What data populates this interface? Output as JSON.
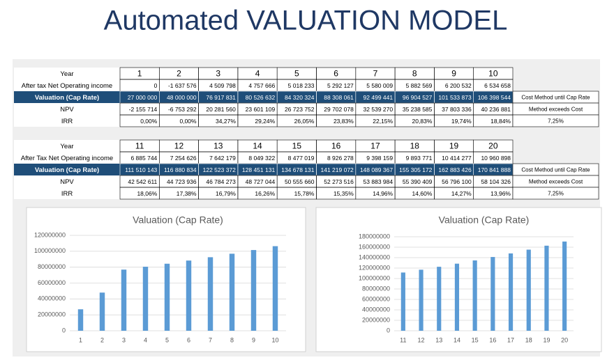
{
  "title": "Automated VALUATION MODEL",
  "tables": [
    {
      "rows": [
        {
          "label": "Year",
          "cells": [
            "1",
            "2",
            "3",
            "4",
            "5",
            "6",
            "7",
            "8",
            "9",
            "10"
          ]
        },
        {
          "label": "After tax Net Operating income",
          "cells": [
            "0",
            "-1 637 576",
            "4 509 798",
            "4 757 666",
            "5 018 233",
            "5 292 127",
            "5 580 009",
            "5 882 569",
            "6 200 532",
            "6 534 658"
          ]
        },
        {
          "label": "Valuation (Cap Rate)",
          "cells": [
            "27 000 000",
            "48 000 000",
            "76 917 831",
            "80 526 632",
            "84 320 324",
            "88 308 061",
            "92 499 441",
            "96 904 527",
            "101 533 873",
            "106 398 544"
          ],
          "note": "Cost Method until Cap Rate"
        },
        {
          "label": "NPV",
          "cells": [
            "-2 155 714",
            "-6 753 292",
            "20 281 560",
            "23 601 109",
            "26 723 752",
            "29 702 078",
            "32 539 270",
            "35 238 585",
            "37 803 336",
            "40 236 881"
          ],
          "note": "Method exceeds Cost"
        },
        {
          "label": "IRR",
          "cells": [
            "0,00%",
            "0,00%",
            "34,27%",
            "29,24%",
            "26,05%",
            "23,83%",
            "22,15%",
            "20,83%",
            "19,74%",
            "18,84%"
          ],
          "note": "7,25%"
        }
      ]
    },
    {
      "rows": [
        {
          "label": "Year",
          "cells": [
            "11",
            "12",
            "13",
            "14",
            "15",
            "16",
            "17",
            "18",
            "19",
            "20"
          ]
        },
        {
          "label": "After Tax Net Operating income",
          "cells": [
            "6 885 744",
            "7 254 626",
            "7 642 179",
            "8 049 322",
            "8 477 019",
            "8 926 278",
            "9 398 159",
            "9 893 771",
            "10 414 277",
            "10 960 898"
          ]
        },
        {
          "label": "Valuation (Cap Rate)",
          "cells": [
            "111 510 143",
            "116 880 834",
            "122 523 372",
            "128 451 131",
            "134 678 131",
            "141 219 072",
            "148 089 367",
            "155 305 172",
            "162 883 426",
            "170 841 888"
          ],
          "note": "Cost Method until Cap Rate"
        },
        {
          "label": "NPV",
          "cells": [
            "42 542 611",
            "44 723 936",
            "46 784 273",
            "48 727 044",
            "50 555 660",
            "52 273 516",
            "53 883 984",
            "55 390 409",
            "56 796 100",
            "58 104 326"
          ],
          "note": "Method exceeds Cost"
        },
        {
          "label": "IRR",
          "cells": [
            "18,06%",
            "17,38%",
            "16,79%",
            "16,26%",
            "15,78%",
            "15,35%",
            "14,96%",
            "14,60%",
            "14,27%",
            "13,96%"
          ],
          "note": "7,25%"
        }
      ]
    }
  ],
  "chart_data": [
    {
      "type": "bar",
      "title": "Valuation (Cap Rate)",
      "color": "#5b9bd5",
      "grid": true,
      "categories": [
        "1",
        "2",
        "3",
        "4",
        "5",
        "6",
        "7",
        "8",
        "9",
        "10"
      ],
      "values": [
        27000000,
        48000000,
        76917831,
        80526632,
        84320324,
        88308061,
        92499441,
        96904527,
        101533873,
        106398544
      ],
      "ylim": [
        0,
        120000000
      ],
      "yticks": [
        0,
        20000000,
        40000000,
        60000000,
        80000000,
        100000000,
        120000000
      ]
    },
    {
      "type": "bar",
      "title": "Valuation (Cap Rate)",
      "color": "#5b9bd5",
      "grid": true,
      "categories": [
        "11",
        "12",
        "13",
        "14",
        "15",
        "16",
        "17",
        "18",
        "19",
        "20"
      ],
      "values": [
        111510143,
        116880834,
        122523372,
        128451131,
        134678131,
        141219072,
        148089367,
        155305172,
        162883426,
        170841888
      ],
      "ylim": [
        0,
        180000000
      ],
      "yticks": [
        0,
        20000000,
        40000000,
        60000000,
        80000000,
        100000000,
        120000000,
        140000000,
        160000000,
        180000000
      ]
    }
  ]
}
